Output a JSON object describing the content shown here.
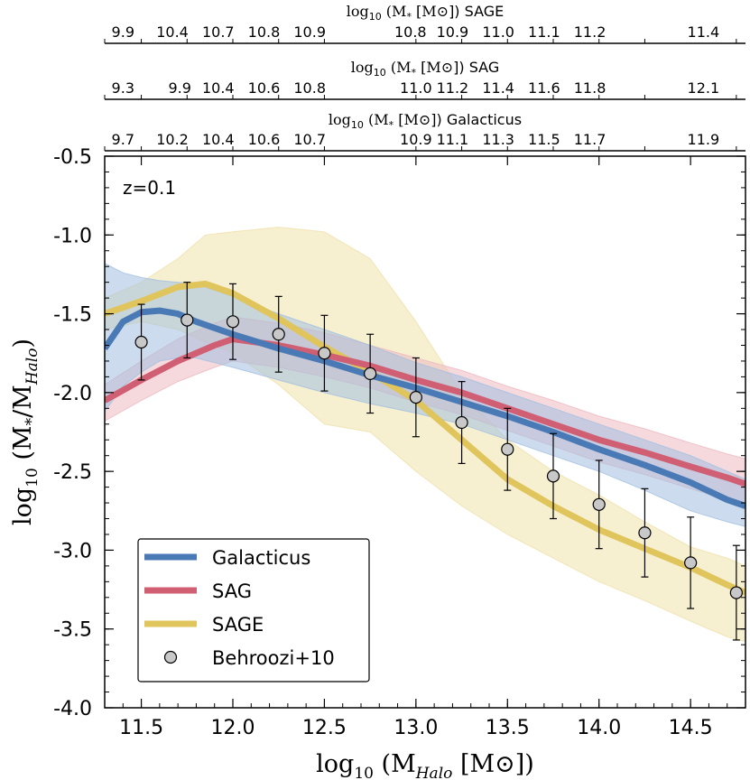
{
  "chart_data": {
    "type": "line",
    "annotation": "z=0.1",
    "xlabel": {
      "prefix": "log",
      "sub": "10",
      "mid": " (M",
      "msub": "Halo",
      "suffix": " [M",
      "sun": "⊙",
      "close": "])"
    },
    "ylabel": {
      "prefix": "log",
      "sub": "10",
      "mid": " (M",
      "star": "*",
      "slash": "/M",
      "msub": "Halo",
      "close": ")"
    },
    "xlim": [
      11.3,
      14.8
    ],
    "ylim": [
      -4.0,
      -0.5
    ],
    "xticks": [
      11.5,
      12.0,
      12.5,
      13.0,
      13.5,
      14.0,
      14.5
    ],
    "xtick_labels": [
      "11.5",
      "12.0",
      "12.5",
      "13.0",
      "13.5",
      "14.0",
      "14.5"
    ],
    "yticks": [
      -0.5,
      -1.0,
      -1.5,
      -2.0,
      -2.5,
      -3.0,
      -3.5,
      -4.0
    ],
    "ytick_labels": [
      "-0.5",
      "-1.0",
      "-1.5",
      "-2.0",
      "-2.5",
      "-3.0",
      "-3.5",
      "-4.0"
    ],
    "top_axes": [
      {
        "model": "SAGE",
        "title_prefix": "log",
        "title_sub": "10",
        "title_mid": " (M",
        "title_star": "*",
        "title_unit": " [M",
        "title_sun": "⊙",
        "title_close": "]) SAGE",
        "tick_x": [
          11.3,
          11.5,
          11.75,
          12.0,
          12.25,
          12.5,
          13.0,
          13.25,
          13.5,
          13.75,
          14.0,
          14.25,
          14.75
        ],
        "labels": [
          "9.9",
          "10.4",
          "10.7",
          "10.8",
          "10.9",
          "10.8",
          "10.9",
          "11.0",
          "11.1",
          "11.2",
          "11.4"
        ],
        "label_x": [
          11.4,
          11.67,
          11.92,
          12.17,
          12.42,
          12.97,
          13.2,
          13.45,
          13.7,
          13.95,
          14.57
        ]
      },
      {
        "model": "SAG",
        "title_prefix": "log",
        "title_sub": "10",
        "title_mid": " (M",
        "title_star": "*",
        "title_unit": " [M",
        "title_sun": "⊙",
        "title_close": "]) SAG",
        "tick_x": [
          11.3,
          11.5,
          11.75,
          12.0,
          12.25,
          12.5,
          13.0,
          13.25,
          13.5,
          13.75,
          14.0,
          14.25,
          14.75
        ],
        "labels": [
          "9.3",
          "9.9",
          "10.4",
          "10.6",
          "10.8",
          "11.0",
          "11.2",
          "11.4",
          "11.6",
          "11.8",
          "12.1"
        ],
        "label_x": [
          11.4,
          11.71,
          11.92,
          12.17,
          12.42,
          13.0,
          13.2,
          13.45,
          13.7,
          13.95,
          14.57
        ]
      },
      {
        "model": "Galacticus",
        "title_prefix": "log",
        "title_sub": "10",
        "title_mid": " (M",
        "title_star": "*",
        "title_unit": " [M",
        "title_sun": "⊙",
        "title_close": "]) Galacticus",
        "tick_x": [
          11.3,
          11.5,
          11.75,
          12.0,
          12.25,
          12.5,
          13.0,
          13.25,
          13.5,
          13.75,
          14.0,
          14.25,
          14.75
        ],
        "labels": [
          "9.7",
          "10.2",
          "10.4",
          "10.6",
          "10.7",
          "10.9",
          "11.1",
          "11.3",
          "11.5",
          "11.7",
          "11.9"
        ],
        "label_x": [
          11.4,
          11.67,
          11.92,
          12.17,
          12.42,
          13.0,
          13.2,
          13.45,
          13.7,
          13.95,
          14.57
        ]
      }
    ],
    "series": [
      {
        "name": "Galacticus",
        "color": "#4a7ab5",
        "band_color": "#a3bfe0",
        "x": [
          11.3,
          11.4,
          11.5,
          11.6,
          11.7,
          11.8,
          12.0,
          12.25,
          12.5,
          12.75,
          13.0,
          13.25,
          13.5,
          13.75,
          14.0,
          14.25,
          14.5,
          14.7,
          14.8
        ],
        "y": [
          -1.72,
          -1.55,
          -1.49,
          -1.48,
          -1.5,
          -1.55,
          -1.63,
          -1.72,
          -1.8,
          -1.89,
          -1.97,
          -2.06,
          -2.15,
          -2.25,
          -2.36,
          -2.46,
          -2.57,
          -2.68,
          -2.72
        ],
        "upper": [
          -1.18,
          -1.24,
          -1.27,
          -1.29,
          -1.3,
          -1.31,
          -1.39,
          -1.5,
          -1.6,
          -1.7,
          -1.81,
          -1.9,
          -2.0,
          -2.1,
          -2.2,
          -2.3,
          -2.4,
          -2.5,
          -2.55
        ],
        "lower": [
          -2.12,
          -1.96,
          -1.87,
          -1.8,
          -1.78,
          -1.78,
          -1.84,
          -1.92,
          -2.0,
          -2.07,
          -2.13,
          -2.2,
          -2.3,
          -2.4,
          -2.5,
          -2.62,
          -2.75,
          -2.82,
          -2.85
        ]
      },
      {
        "name": "SAG",
        "color": "#d05f74",
        "band_color": "#ecb9c1",
        "x": [
          11.3,
          11.5,
          11.7,
          11.9,
          12.0,
          12.25,
          12.5,
          12.75,
          13.0,
          13.25,
          13.5,
          13.75,
          14.0,
          14.25,
          14.5,
          14.7,
          14.8
        ],
        "y": [
          -2.05,
          -1.92,
          -1.8,
          -1.7,
          -1.66,
          -1.7,
          -1.76,
          -1.83,
          -1.92,
          -2.0,
          -2.1,
          -2.2,
          -2.3,
          -2.38,
          -2.47,
          -2.54,
          -2.58
        ],
        "upper": [
          -1.95,
          -1.8,
          -1.66,
          -1.56,
          -1.52,
          -1.56,
          -1.62,
          -1.7,
          -1.78,
          -1.86,
          -1.96,
          -2.05,
          -2.15,
          -2.23,
          -2.32,
          -2.39,
          -2.42
        ],
        "lower": [
          -2.18,
          -2.05,
          -1.93,
          -1.84,
          -1.8,
          -1.84,
          -1.9,
          -1.97,
          -2.06,
          -2.14,
          -2.24,
          -2.34,
          -2.44,
          -2.52,
          -2.61,
          -2.68,
          -2.72
        ]
      },
      {
        "name": "SAGE",
        "color": "#e0c45c",
        "band_color": "#efe1aa",
        "x": [
          11.3,
          11.5,
          11.7,
          11.85,
          12.0,
          12.25,
          12.5,
          12.75,
          13.0,
          13.25,
          13.5,
          13.75,
          14.0,
          14.25,
          14.5,
          14.7,
          14.8
        ],
        "y": [
          -1.5,
          -1.42,
          -1.33,
          -1.31,
          -1.37,
          -1.53,
          -1.71,
          -1.87,
          -2.05,
          -2.3,
          -2.55,
          -2.72,
          -2.87,
          -2.99,
          -3.11,
          -3.22,
          -3.27
        ],
        "upper": [
          -1.4,
          -1.3,
          -1.15,
          -1.0,
          -0.98,
          -0.95,
          -0.98,
          -1.15,
          -1.55,
          -2.0,
          -2.3,
          -2.5,
          -2.65,
          -2.82,
          -2.98,
          -3.05,
          -3.1
        ],
        "lower": [
          -1.6,
          -1.55,
          -1.6,
          -1.68,
          -1.75,
          -1.95,
          -2.2,
          -2.25,
          -2.5,
          -2.72,
          -2.9,
          -3.05,
          -3.2,
          -3.32,
          -3.45,
          -3.55,
          -3.58
        ]
      }
    ],
    "behroozi": {
      "name": "Behroozi+10",
      "color": "#c8c8c8",
      "x": [
        11.5,
        11.75,
        12.0,
        12.25,
        12.5,
        12.75,
        13.0,
        13.25,
        13.5,
        13.75,
        14.0,
        14.25,
        14.5,
        14.75
      ],
      "y": [
        -1.68,
        -1.54,
        -1.55,
        -1.63,
        -1.75,
        -1.88,
        -2.03,
        -2.19,
        -2.36,
        -2.53,
        -2.71,
        -2.89,
        -3.08,
        -3.27
      ],
      "err": [
        0.24,
        0.24,
        0.24,
        0.24,
        0.24,
        0.25,
        0.25,
        0.26,
        0.26,
        0.27,
        0.28,
        0.28,
        0.29,
        0.3
      ]
    },
    "legend": {
      "placement": "lower-left",
      "entries": [
        "Galacticus",
        "SAG",
        "SAGE",
        "Behroozi+10"
      ]
    }
  }
}
